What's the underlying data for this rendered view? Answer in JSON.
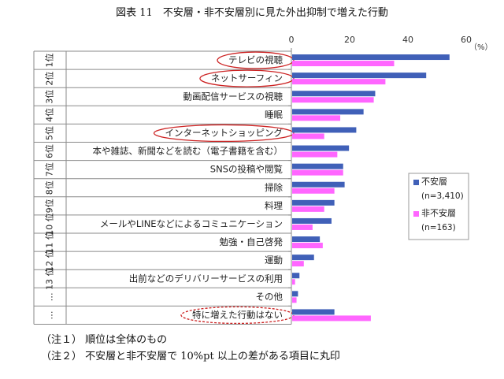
{
  "chart_data": {
    "type": "bar",
    "orientation": "horizontal",
    "title": "図表 11　不安層・非不安層別に見た外出抑制で増えた行動",
    "unit_label": "（%）",
    "xlim": [
      0,
      60
    ],
    "x_ticks": [
      0,
      20,
      40,
      60
    ],
    "grid": false,
    "legend_position": "right",
    "ranks": [
      "1位",
      "2位",
      "3位",
      "4位",
      "5位",
      "6位",
      "7位",
      "8位",
      "9位",
      "10 位",
      "11 位",
      "12 位",
      "13 位",
      "…",
      "…"
    ],
    "categories": [
      "テレビの視聴",
      "ネットサーフィン",
      "動画配信サービスの視聴",
      "睡眠",
      "インターネットショッピング",
      "本や雑誌、新聞などを読む（電子書籍を含む）",
      "SNSの投稿や閲覧",
      "掃除",
      "料理",
      "メールやLINEなどによるコミュニケーション",
      "勉強・自己啓発",
      "運動",
      "出前などのデリバリーサービスの利用",
      "その他",
      "特に増えた行動はない"
    ],
    "circled": [
      true,
      true,
      false,
      false,
      true,
      false,
      false,
      false,
      false,
      false,
      false,
      false,
      false,
      false,
      true
    ],
    "series": [
      {
        "name": "不安層",
        "n_label": "(n=3,410)",
        "color": "#4060b8",
        "values": [
          54,
          46,
          28.5,
          24.5,
          22,
          19.5,
          17.5,
          18,
          14.5,
          13.5,
          9.5,
          7.5,
          2.5,
          2,
          14.5
        ]
      },
      {
        "name": "非不安層",
        "n_label": "(n=163)",
        "color": "#ff66ff",
        "values": [
          35,
          32,
          28,
          16.5,
          11,
          15.5,
          17.5,
          14.5,
          11,
          7,
          10.5,
          4,
          1,
          1.5,
          27
        ]
      }
    ]
  },
  "notes": [
    "（注１） 順位は全体のもの",
    "（注２） 不安層と非不安層で 10%pt 以上の差がある項目に丸印"
  ]
}
